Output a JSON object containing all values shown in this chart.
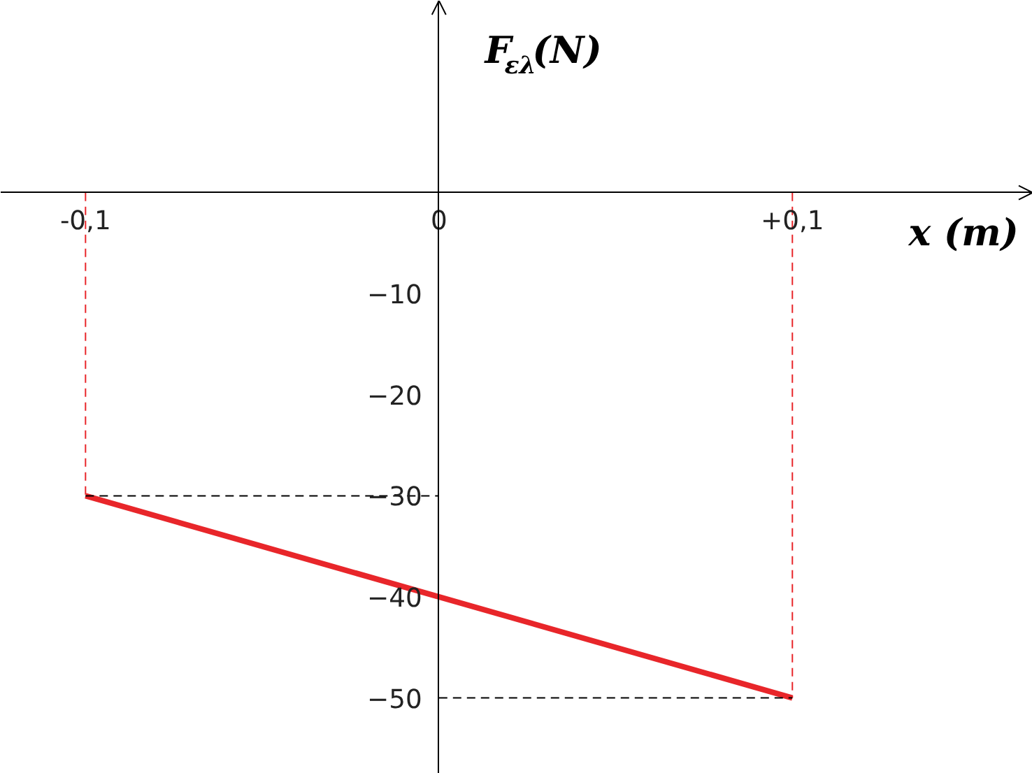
{
  "chart_data": {
    "type": "line",
    "xlabel": "x (m)",
    "ylabel": "F$_{ελ}$(N)",
    "x": [
      -0.1,
      0.1
    ],
    "series": [
      {
        "color": "#e8262a",
        "values": [
          -30,
          -50
        ]
      },
      {
        "type": "line",
        "x": [
          -0.1,
          -0.1
        ],
        "values": [
          0,
          -30
        ],
        "color": "#e8262a",
        "line_style": "dashed"
      },
      {
        "type": "line",
        "x": [
          0.1,
          0.1
        ],
        "values": [
          0,
          -50
        ],
        "color": "#e8262a",
        "line_style": "dashed"
      },
      {
        "type": "line",
        "x": [
          -0.1,
          0
        ],
        "values": [
          -30,
          -30
        ],
        "color": "#000000",
        "line_style": "dashed"
      },
      {
        "type": "line",
        "x": [
          0,
          0.1
        ],
        "values": [
          -50,
          -50
        ],
        "color": "#000000",
        "line_style": "dashed"
      }
    ],
    "xlim": [
      -0.124,
      0.168
    ],
    "ylim": [
      -57.5,
      19
    ],
    "xticks": [
      {
        "value": -0.1,
        "label": "-0,1"
      },
      {
        "value": 0,
        "label": "0"
      },
      {
        "value": 0.1,
        "label": "+0,1"
      }
    ],
    "yticks": [
      -10,
      -20,
      -30,
      -40,
      -50
    ],
    "grid": false,
    "marker": "none",
    "line_style": "solid"
  }
}
